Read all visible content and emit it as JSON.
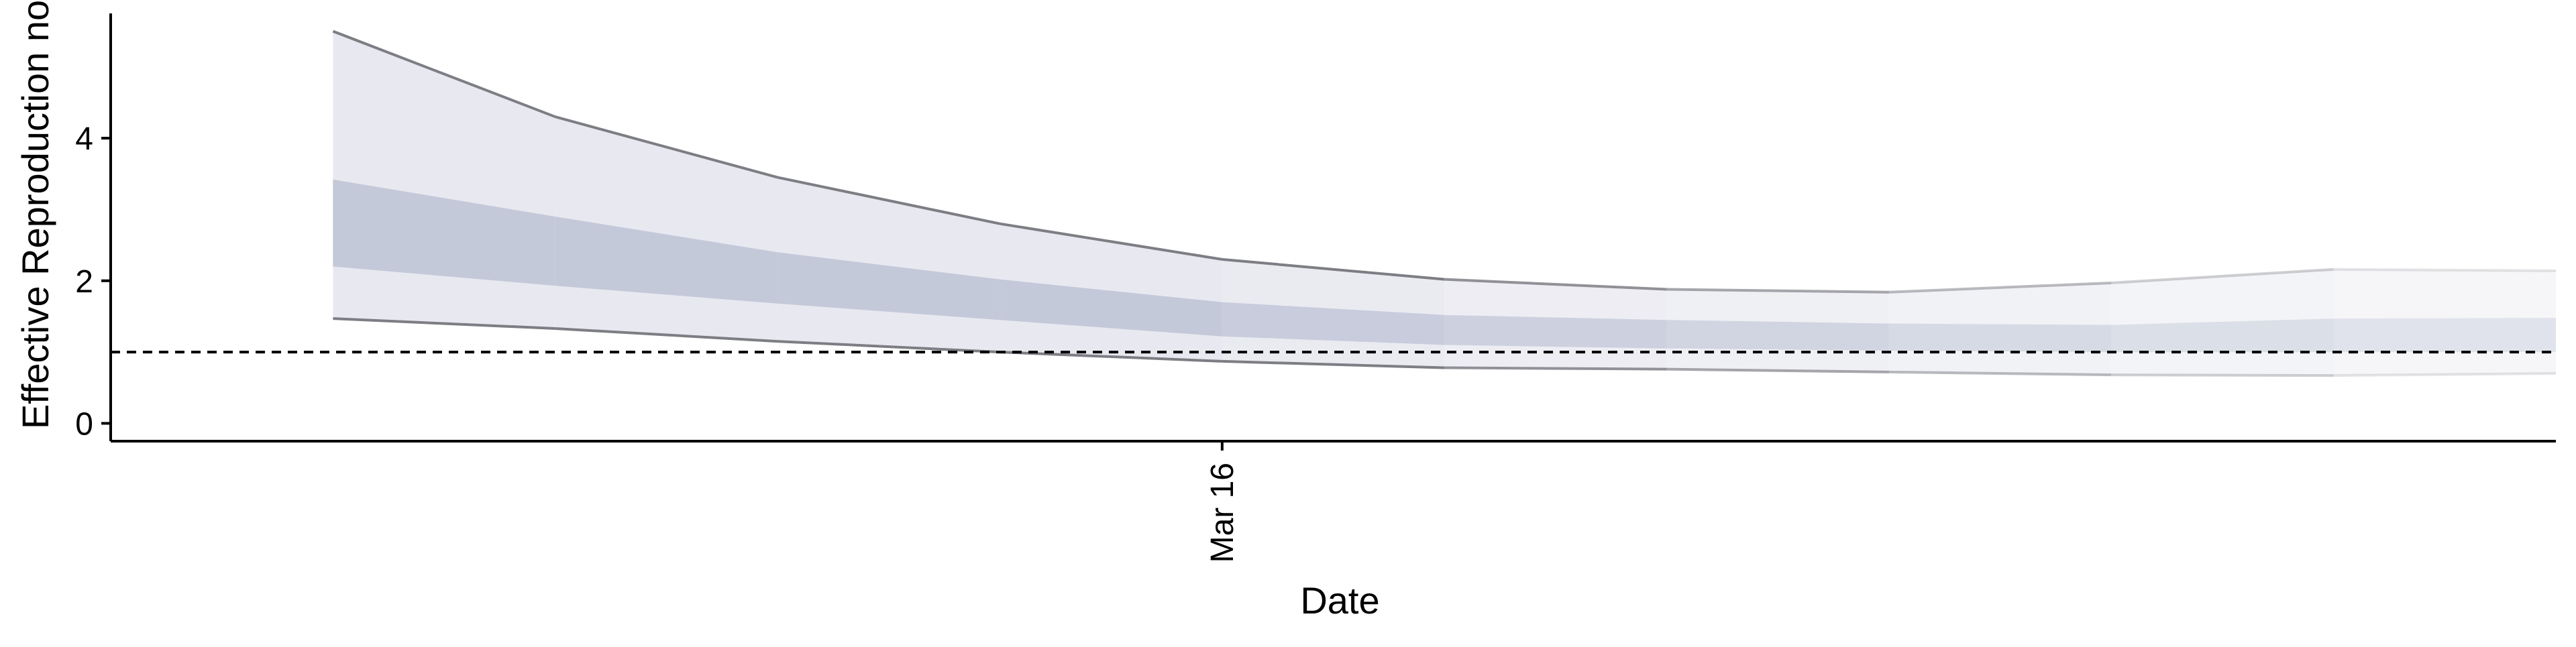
{
  "chart_data": {
    "type": "area",
    "title": "",
    "xlabel": "Date",
    "ylabel": "Effective Reproduction no",
    "x_tick_labels": [
      {
        "date": "2020-03-16",
        "label": "Mar 16"
      }
    ],
    "y_ticks": [
      0,
      2,
      4
    ],
    "ylim": [
      -0.25,
      5.75
    ],
    "x": [
      "2020-03-12",
      "2020-03-13",
      "2020-03-14",
      "2020-03-15",
      "2020-03-16",
      "2020-03-17",
      "2020-03-18",
      "2020-03-19",
      "2020-03-20",
      "2020-03-21",
      "2020-03-22"
    ],
    "xlim": [
      "2020-03-11",
      "2020-03-22"
    ],
    "series": [
      {
        "outer_upper": [
          5.5,
          4.3,
          3.45,
          2.8,
          2.3,
          2.02,
          1.88,
          1.84,
          1.97,
          2.16,
          2.14
        ],
        "outer_lower": [
          1.47,
          1.33,
          1.15,
          1.0,
          0.87,
          0.78,
          0.76,
          0.72,
          0.68,
          0.67,
          0.7
        ],
        "inner_upper": [
          3.42,
          2.9,
          2.4,
          2.02,
          1.7,
          1.52,
          1.45,
          1.4,
          1.38,
          1.47,
          1.48
        ],
        "inner_lower": [
          2.2,
          1.93,
          1.68,
          1.45,
          1.22,
          1.1,
          1.05,
          1.02,
          1.0,
          1.0,
          1.0
        ]
      }
    ],
    "reference_line": {
      "y": 1,
      "style": "dashed"
    },
    "colors": {
      "outer_band": "#e8e9f0",
      "inner_band": "#c4c9da",
      "bound_line": "#7d7d84",
      "reference_line": "#000000",
      "axis": "#000000"
    },
    "grid": false,
    "legend": "none"
  }
}
